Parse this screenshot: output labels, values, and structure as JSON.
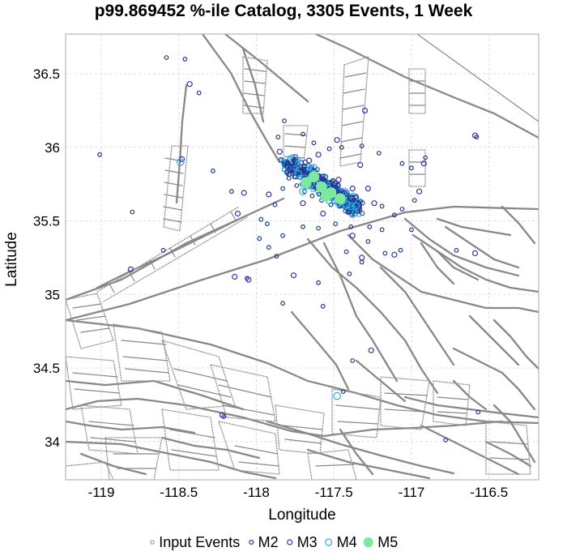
{
  "chart_data": {
    "type": "scatter",
    "title": "p99.869452 %-ile Catalog, 3305 Events, 1 Week",
    "xlabel": "Longitude",
    "ylabel": "Latitude",
    "xlim": [
      -119.23,
      -116.18
    ],
    "ylim": [
      33.74,
      36.77
    ],
    "xticks": [
      -119,
      -118.5,
      -118,
      -117.5,
      -117,
      -116.5
    ],
    "xtick_labels": [
      "-119",
      "-118.5",
      "-118",
      "-117.5",
      "-117",
      "-116.5"
    ],
    "yticks": [
      34,
      34.5,
      35,
      35.5,
      36,
      36.5
    ],
    "ytick_labels": [
      "34",
      "34.5",
      "35",
      "35.5",
      "36",
      "36.5"
    ],
    "grid": true,
    "legend_placement": "bottom",
    "legend": [
      {
        "label": "Input Events",
        "color": "#999999",
        "fill": false
      },
      {
        "label": "M2",
        "color": "#1a3a8a",
        "fill": false
      },
      {
        "label": "M3",
        "color": "#3a2fb0",
        "fill": false
      },
      {
        "label": "M4",
        "color": "#2ab0e0",
        "fill": false
      },
      {
        "label": "M5",
        "color": "#7de8a0",
        "fill": true
      }
    ],
    "series": [
      {
        "name": "M2",
        "color": "#1a3a8a",
        "points": [
          [
            -118.58,
            36.61
          ],
          [
            -118.46,
            36.6
          ],
          [
            -118.37,
            36.37
          ],
          [
            -117.82,
            36.18
          ],
          [
            -117.7,
            36.09
          ],
          [
            -117.86,
            36.07
          ],
          [
            -117.63,
            36.03
          ],
          [
            -117.53,
            35.99
          ],
          [
            -117.45,
            36.0
          ],
          [
            -117.32,
            36.01
          ],
          [
            -117.21,
            35.96
          ],
          [
            -117.06,
            35.89
          ],
          [
            -117.0,
            35.86
          ],
          [
            -116.91,
            35.93
          ],
          [
            -116.58,
            36.07
          ],
          [
            -118.16,
            35.7
          ],
          [
            -118.28,
            35.84
          ],
          [
            -117.82,
            35.88
          ],
          [
            -117.76,
            35.91
          ],
          [
            -117.71,
            35.84
          ],
          [
            -117.66,
            35.82
          ],
          [
            -117.6,
            35.78
          ],
          [
            -117.56,
            35.76
          ],
          [
            -117.5,
            35.73
          ],
          [
            -117.46,
            35.7
          ],
          [
            -117.42,
            35.66
          ],
          [
            -117.38,
            35.63
          ],
          [
            -117.34,
            35.62
          ],
          [
            -117.74,
            35.74
          ],
          [
            -117.69,
            35.7
          ],
          [
            -117.64,
            35.67
          ],
          [
            -117.58,
            35.64
          ],
          [
            -117.52,
            35.61
          ],
          [
            -117.79,
            35.79
          ],
          [
            -117.83,
            35.72
          ],
          [
            -117.88,
            35.61
          ],
          [
            -117.97,
            35.51
          ],
          [
            -117.98,
            35.38
          ],
          [
            -117.92,
            35.32
          ],
          [
            -117.87,
            35.26
          ],
          [
            -117.7,
            35.46
          ],
          [
            -117.6,
            35.45
          ],
          [
            -117.49,
            35.48
          ],
          [
            -117.39,
            35.46
          ],
          [
            -117.27,
            35.46
          ],
          [
            -117.19,
            35.44
          ],
          [
            -117.11,
            35.54
          ],
          [
            -117.06,
            35.58
          ],
          [
            -116.98,
            35.64
          ],
          [
            -117.0,
            35.44
          ],
          [
            -117.07,
            35.3
          ],
          [
            -117.17,
            35.28
          ],
          [
            -117.32,
            35.22
          ],
          [
            -117.42,
            35.29
          ],
          [
            -117.28,
            35.36
          ],
          [
            -117.4,
            35.14
          ],
          [
            -117.6,
            35.08
          ],
          [
            -117.57,
            34.92
          ],
          [
            -117.83,
            34.94
          ],
          [
            -117.38,
            34.55
          ],
          [
            -119.01,
            35.95
          ],
          [
            -118.8,
            35.56
          ],
          [
            -118.6,
            35.3
          ],
          [
            -118.06,
            35.11
          ],
          [
            -117.44,
            34.34
          ],
          [
            -118.21,
            34.17
          ],
          [
            -116.71,
            35.3
          ],
          [
            -116.57,
            34.2
          ],
          [
            -116.78,
            34.01
          ],
          [
            -117.19,
            35.6
          ],
          [
            -117.93,
            35.48
          ],
          [
            -117.83,
            35.4
          ]
        ]
      },
      {
        "name": "M3",
        "color": "#3a2fb0",
        "points": [
          [
            -118.43,
            36.43
          ],
          [
            -117.85,
            35.97
          ],
          [
            -117.78,
            35.86
          ],
          [
            -117.72,
            35.8
          ],
          [
            -117.65,
            35.76
          ],
          [
            -117.55,
            35.71
          ],
          [
            -117.48,
            35.67
          ],
          [
            -117.43,
            35.62
          ],
          [
            -117.3,
            36.25
          ],
          [
            -117.48,
            36.05
          ],
          [
            -117.66,
            35.91
          ],
          [
            -117.6,
            35.95
          ],
          [
            -117.47,
            35.78
          ],
          [
            -117.38,
            35.72
          ],
          [
            -117.57,
            35.55
          ],
          [
            -117.7,
            35.62
          ],
          [
            -117.92,
            35.68
          ],
          [
            -118.08,
            35.69
          ],
          [
            -118.12,
            35.55
          ],
          [
            -118.05,
            35.1
          ],
          [
            -117.76,
            35.13
          ],
          [
            -117.32,
            35.25
          ],
          [
            -117.11,
            35.27
          ],
          [
            -116.95,
            35.7
          ],
          [
            -116.92,
            35.89
          ],
          [
            -116.59,
            36.08
          ],
          [
            -116.59,
            35.28
          ],
          [
            -118.14,
            35.12
          ],
          [
            -118.48,
            35.92
          ],
          [
            -118.22,
            34.18
          ],
          [
            -117.26,
            34.62
          ],
          [
            -118.81,
            35.17
          ],
          [
            -117.38,
            35.4
          ],
          [
            -117.33,
            35.88
          ],
          [
            -117.28,
            35.72
          ],
          [
            -117.24,
            35.62
          ]
        ]
      },
      {
        "name": "M4",
        "color": "#2ab0e0",
        "points": [
          [
            -118.49,
            35.9
          ],
          [
            -117.73,
            35.82
          ],
          [
            -117.67,
            35.74
          ],
          [
            -117.61,
            35.76
          ],
          [
            -117.56,
            35.66
          ],
          [
            -117.51,
            35.7
          ],
          [
            -117.44,
            35.64
          ],
          [
            -117.42,
            35.61
          ],
          [
            -117.36,
            35.6
          ],
          [
            -117.63,
            35.86
          ],
          [
            -117.58,
            35.69
          ],
          [
            -117.47,
            35.62
          ],
          [
            -117.53,
            35.64
          ],
          [
            -117.69,
            35.79
          ],
          [
            -117.48,
            34.31
          ],
          [
            -117.39,
            35.6
          ],
          [
            -117.7,
            35.7
          ],
          [
            -117.54,
            35.72
          ]
        ]
      },
      {
        "name": "M5",
        "color": "#7de8a0",
        "points": [
          [
            -117.63,
            35.8
          ],
          [
            -117.58,
            35.73
          ],
          [
            -117.52,
            35.69
          ],
          [
            -117.46,
            35.65
          ],
          [
            -117.68,
            35.76
          ],
          [
            -117.55,
            35.67
          ]
        ]
      }
    ]
  }
}
